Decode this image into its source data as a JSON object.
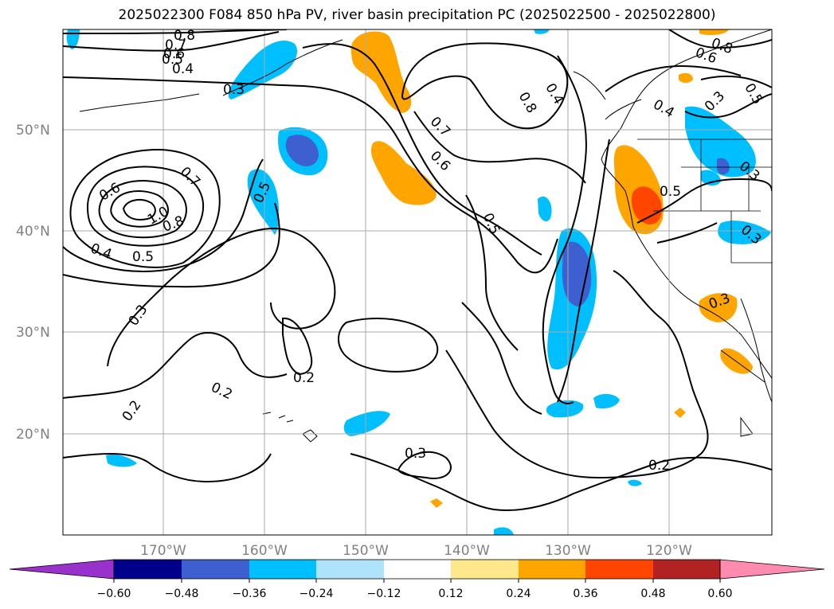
{
  "title": "2025022300 F084 850 hPa PV, river basin precipitation PC (2025022500 - 2025022800)",
  "map": {
    "lat_labels": [
      "50°N",
      "40°N",
      "30°N",
      "20°N"
    ],
    "lon_labels": [
      "170°W",
      "160°W",
      "150°W",
      "140°W",
      "130°W",
      "120°W"
    ],
    "contour_labels": [
      "0.8",
      "0.7",
      "0.6",
      "0.5",
      "0.4",
      "0.3",
      "0.8",
      "0.7",
      "0.6",
      "0.4",
      "0.5",
      "0.6",
      "0.7",
      "1.0",
      "0.8",
      "0.4",
      "0.5",
      "0.3",
      "0.2",
      "0.2",
      "0.2",
      "0.3",
      "0.2",
      "0.5",
      "0.5",
      "0.4",
      "0.3",
      "0.8",
      "0.6",
      "0.5",
      "0.3",
      "0.3",
      "0.3"
    ],
    "colors": {
      "contour": "#000000",
      "grid": "#aaaaaa",
      "coast": "#000000"
    }
  },
  "colorbar": {
    "ticks": [
      "−0.60",
      "−0.48",
      "−0.36",
      "−0.24",
      "−0.12",
      "0.12",
      "0.24",
      "0.36",
      "0.48",
      "0.60"
    ],
    "colors": [
      "#9932cc",
      "#00008b",
      "#3d5fcf",
      "#00bfff",
      "#aee3fb",
      "#ffffff",
      "#ffe88c",
      "#ffa500",
      "#ff4500",
      "#b22222",
      "#ff8cb0"
    ]
  }
}
